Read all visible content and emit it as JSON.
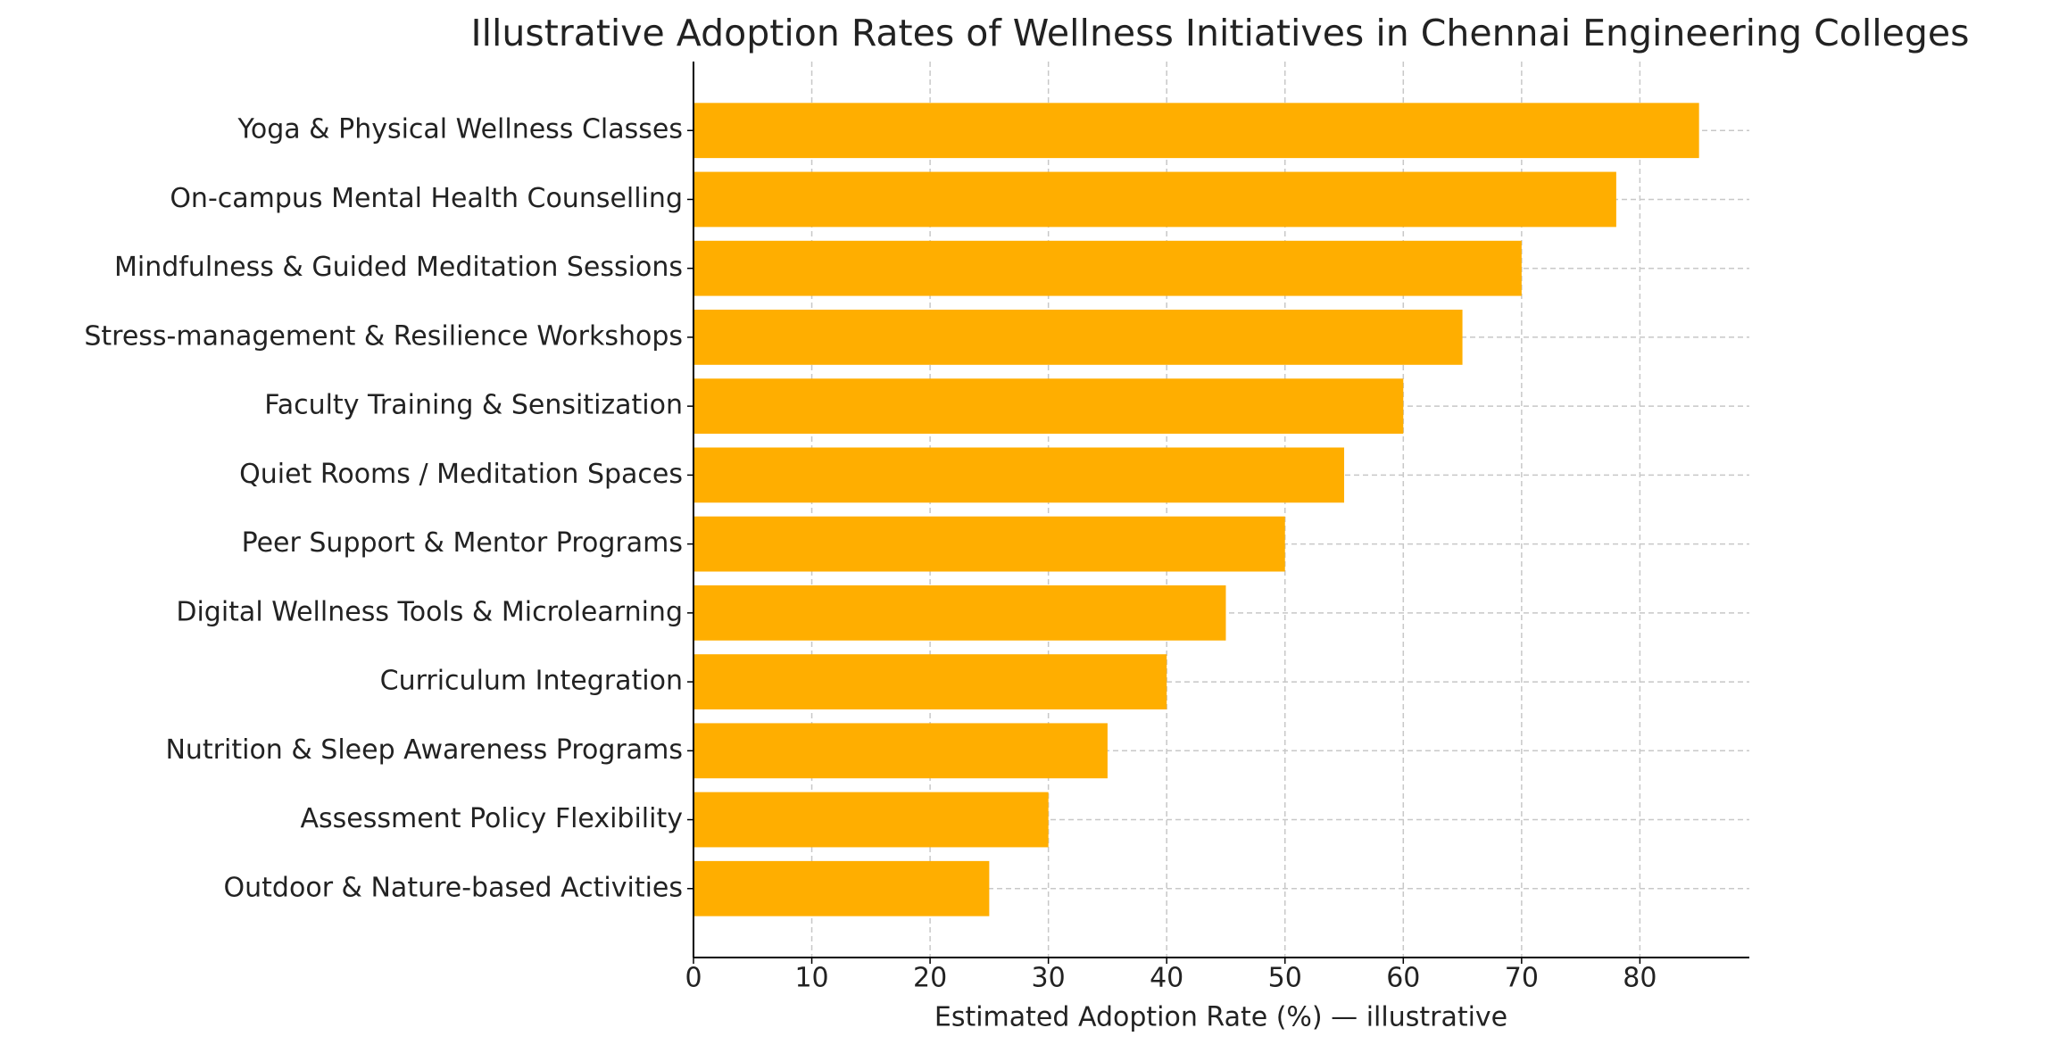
{
  "chart_data": {
    "type": "barh",
    "title": "Illustrative Adoption Rates of Wellness Initiatives in Chennai Engineering Colleges",
    "x_label": "Estimated Adoption Rate (%) — illustrative",
    "categories": [
      "Yoga & Physical Wellness Classes",
      "On-campus Mental Health Counselling",
      "Mindfulness & Guided Meditation Sessions",
      "Stress-management & Resilience Workshops",
      "Faculty Training & Sensitization",
      "Quiet Rooms / Meditation Spaces",
      "Peer Support & Mentor Programs",
      "Digital Wellness Tools & Microlearning",
      "Curriculum Integration",
      "Nutrition & Sleep Awareness Programs",
      "Assessment Policy Flexibility",
      "Outdoor & Nature-based Activities"
    ],
    "values": [
      85,
      78,
      70,
      65,
      60,
      55,
      50,
      45,
      40,
      35,
      30,
      25
    ],
    "color": "#ffae00",
    "xlim": [
      0,
      89.25
    ],
    "xticks": [
      0,
      10,
      20,
      30,
      40,
      50,
      60,
      70,
      80
    ],
    "grid": true
  }
}
